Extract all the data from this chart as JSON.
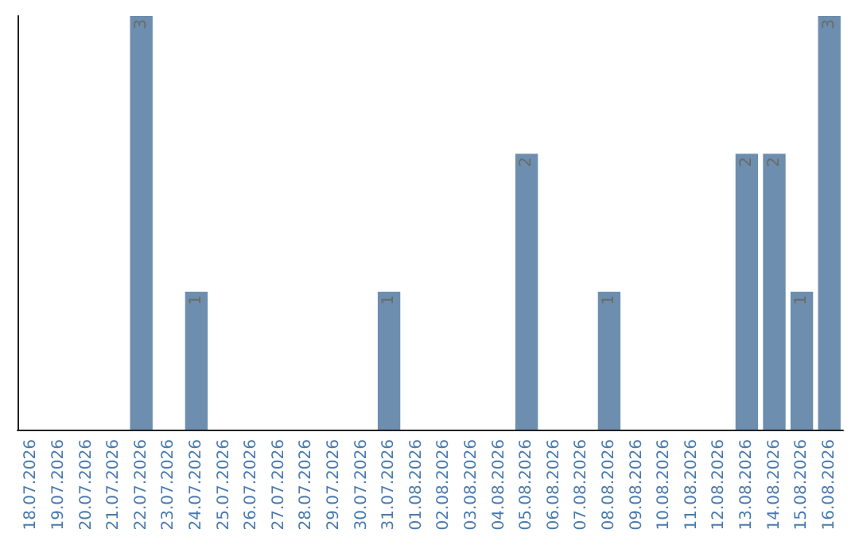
{
  "chart_data": {
    "type": "bar",
    "categories": [
      "18.07.2026",
      "19.07.2026",
      "20.07.2026",
      "21.07.2026",
      "22.07.2026",
      "23.07.2026",
      "24.07.2026",
      "25.07.2026",
      "26.07.2026",
      "27.07.2026",
      "28.07.2026",
      "29.07.2026",
      "30.07.2026",
      "31.07.2026",
      "01.08.2026",
      "02.08.2026",
      "03.08.2026",
      "04.08.2026",
      "05.08.2026",
      "06.08.2026",
      "07.08.2026",
      "08.08.2026",
      "09.08.2026",
      "10.08.2026",
      "11.08.2026",
      "12.08.2026",
      "13.08.2026",
      "14.08.2026",
      "15.08.2026",
      "16.08.2026"
    ],
    "values": [
      0,
      0,
      0,
      0,
      3,
      0,
      1,
      0,
      0,
      0,
      0,
      0,
      0,
      1,
      0,
      0,
      0,
      0,
      2,
      0,
      0,
      1,
      0,
      0,
      0,
      0,
      2,
      2,
      1,
      3
    ],
    "value_labels": [
      null,
      null,
      null,
      null,
      "3",
      null,
      "1",
      null,
      null,
      null,
      null,
      null,
      null,
      "1",
      null,
      null,
      null,
      null,
      "2",
      null,
      null,
      "1",
      null,
      null,
      null,
      null,
      "2",
      "2",
      "1",
      "3"
    ],
    "color": "#6d8eae",
    "grid": false,
    "tick_labels": "x"
  }
}
